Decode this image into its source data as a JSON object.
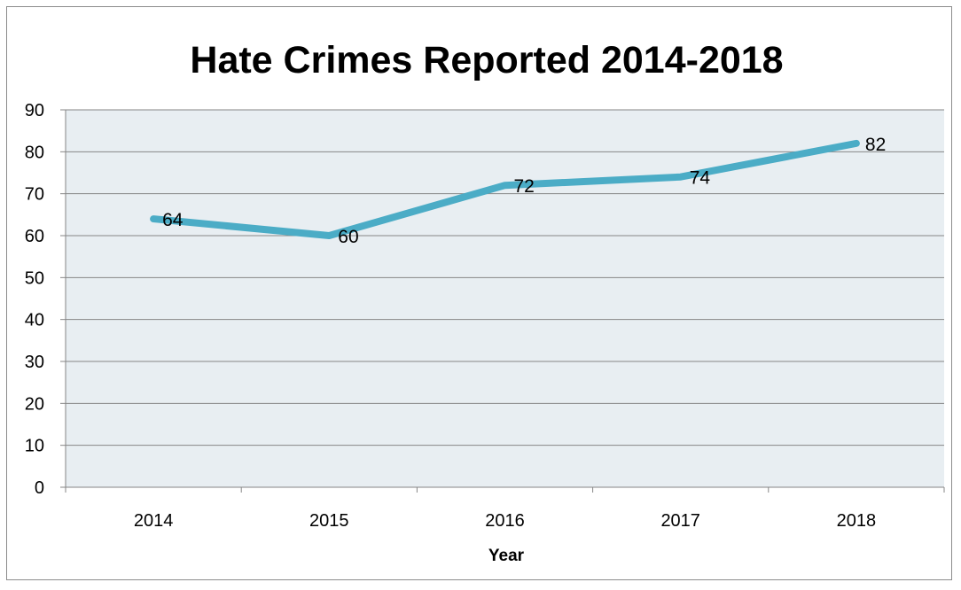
{
  "chart_data": {
    "type": "line",
    "title": "Hate Crimes Reported 2014-2018",
    "xlabel": "Year",
    "ylabel": "",
    "categories": [
      "2014",
      "2015",
      "2016",
      "2017",
      "2018"
    ],
    "series": [
      {
        "values": [
          64,
          60,
          72,
          74,
          82
        ],
        "data_labels": [
          "64",
          "60",
          "72",
          "74",
          "82"
        ]
      }
    ],
    "ylim": [
      0,
      90
    ],
    "y_ticks": [
      "0",
      "10",
      "20",
      "30",
      "40",
      "50",
      "60",
      "70",
      "80",
      "90"
    ],
    "grid": "horizontal",
    "legend": "none",
    "colors": {
      "line": "#4bacc6",
      "plot_background": "#e8eef2",
      "gridline": "#868686",
      "axis": "#868686",
      "frame": "#8c8c8c"
    }
  }
}
